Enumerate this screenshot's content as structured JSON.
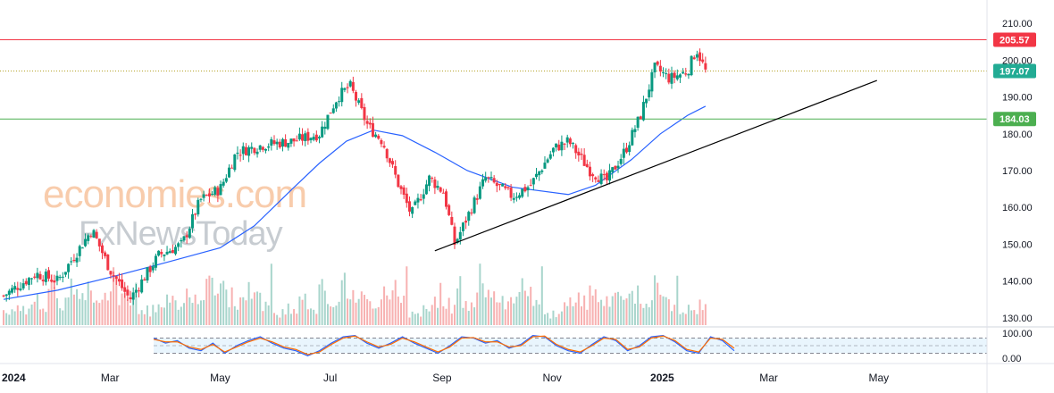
{
  "chart_data": [
    {
      "type": "candlestick",
      "title": "",
      "x_axis": {
        "tick_labels": [
          "2024",
          "Mar",
          "May",
          "Jul",
          "Sep",
          "Nov",
          "2025",
          "Mar",
          "May"
        ],
        "range": [
          "2024-01-01",
          "2025-06-30"
        ]
      },
      "y_axis": {
        "side": "right",
        "tick_labels": [
          "130.00",
          "140.00",
          "150.00",
          "160.00",
          "170.00",
          "180.00",
          "190.00",
          "200.00",
          "210.00"
        ],
        "ylim": [
          128,
          212
        ]
      },
      "grid": false,
      "horizontal_levels": [
        {
          "value": 205.57,
          "label": "205.57",
          "color": "#f23645",
          "style": "solid"
        },
        {
          "value": 197.07,
          "label": "197.07",
          "color": "#b5a42a",
          "style": "dotted",
          "badge_color": "#22ab94"
        },
        {
          "value": 184.03,
          "label": "184.03",
          "color": "#4caf50",
          "style": "solid"
        }
      ],
      "trendline": {
        "color": "#000000",
        "points": [
          [
            "2024-08-28",
            148.2
          ],
          [
            "2025-04-30",
            194.5
          ]
        ]
      },
      "moving_average": {
        "color": "#2962ff",
        "points": [
          [
            "2024-01-02",
            135
          ],
          [
            "2024-02-01",
            137.5
          ],
          [
            "2024-03-01",
            141
          ],
          [
            "2024-04-01",
            145
          ],
          [
            "2024-05-01",
            149
          ],
          [
            "2024-05-20",
            155
          ],
          [
            "2024-06-10",
            165
          ],
          [
            "2024-06-25",
            172
          ],
          [
            "2024-07-10",
            178
          ],
          [
            "2024-07-25",
            181
          ],
          [
            "2024-08-10",
            179.5
          ],
          [
            "2024-08-28",
            175
          ],
          [
            "2024-09-15",
            170
          ],
          [
            "2024-10-10",
            165.5
          ],
          [
            "2024-11-10",
            163.5
          ],
          [
            "2024-11-25",
            166
          ],
          [
            "2024-12-15",
            173
          ],
          [
            "2024-12-31",
            180
          ],
          [
            "2025-01-15",
            185
          ],
          [
            "2025-01-25",
            187.5
          ]
        ]
      },
      "price_path": [
        [
          "2024-01-02",
          136
        ],
        [
          "2024-01-20",
          142
        ],
        [
          "2024-02-01",
          140
        ],
        [
          "2024-02-20",
          154
        ],
        [
          "2024-03-01",
          143
        ],
        [
          "2024-03-12",
          135
        ],
        [
          "2024-03-28",
          147
        ],
        [
          "2024-04-10",
          150
        ],
        [
          "2024-04-20",
          162
        ],
        [
          "2024-05-01",
          165
        ],
        [
          "2024-05-10",
          175
        ],
        [
          "2024-05-25",
          177
        ],
        [
          "2024-06-10",
          178
        ],
        [
          "2024-06-25",
          180
        ],
        [
          "2024-07-05",
          190
        ],
        [
          "2024-07-12",
          193
        ],
        [
          "2024-07-22",
          182
        ],
        [
          "2024-07-30",
          178
        ],
        [
          "2024-08-08",
          166
        ],
        [
          "2024-08-15",
          158
        ],
        [
          "2024-08-25",
          168
        ],
        [
          "2024-09-02",
          164
        ],
        [
          "2024-09-08",
          150
        ],
        [
          "2024-09-25",
          168
        ],
        [
          "2024-10-10",
          163
        ],
        [
          "2024-10-20",
          166
        ],
        [
          "2024-11-02",
          176
        ],
        [
          "2024-11-10",
          178
        ],
        [
          "2024-11-22",
          170
        ],
        [
          "2024-12-01",
          167
        ],
        [
          "2024-12-12",
          176
        ],
        [
          "2024-12-20",
          185
        ],
        [
          "2024-12-28",
          198
        ],
        [
          "2025-01-05",
          195
        ],
        [
          "2025-01-15",
          197
        ],
        [
          "2025-01-20",
          203
        ],
        [
          "2025-01-25",
          197
        ]
      ],
      "volume": {
        "color_up": "#a8d5cc",
        "color_down": "#f7b1b1",
        "relative_height": [
          0.15,
          0.18,
          0.12,
          0.2,
          0.16,
          0.22,
          0.19,
          0.25,
          0.2,
          0.3,
          0.35,
          0.45,
          0.32,
          0.28,
          0.3,
          0.22,
          0.4,
          0.6,
          0.5,
          0.35,
          0.3,
          0.25,
          0.3,
          0.28,
          0.55,
          0.62,
          0.48,
          0.38,
          0.4,
          0.42,
          0.5,
          0.35,
          0.3,
          0.45,
          0.3,
          0.28,
          0.32,
          0.3,
          0.45,
          0.66,
          0.5,
          0.4,
          0.35,
          0.45,
          0.28,
          0.25,
          0.3,
          0.68
        ]
      }
    },
    {
      "type": "line",
      "title": "",
      "y_axis": {
        "tick_labels": [
          "0.00",
          "100.00"
        ],
        "ylim": [
          -10,
          110
        ]
      },
      "band": [
        20,
        80
      ],
      "series": [
        {
          "color": "#2962ff",
          "values": [
            80,
            60,
            70,
            40,
            30,
            60,
            20,
            50,
            70,
            85,
            60,
            40,
            30,
            10,
            30,
            60,
            85,
            90,
            60,
            40,
            60,
            85,
            60,
            40,
            20,
            50,
            85,
            80,
            60,
            70,
            40,
            55,
            90,
            85,
            50,
            30,
            20,
            55,
            85,
            70,
            30,
            50,
            85,
            90,
            65,
            30,
            20,
            85,
            70,
            30
          ]
        },
        {
          "color": "#ff6d00",
          "values": [
            75,
            65,
            65,
            45,
            35,
            55,
            25,
            45,
            65,
            80,
            65,
            45,
            35,
            15,
            25,
            55,
            80,
            88,
            65,
            45,
            55,
            80,
            65,
            45,
            25,
            45,
            80,
            82,
            65,
            65,
            45,
            50,
            85,
            88,
            55,
            35,
            25,
            50,
            80,
            75,
            35,
            45,
            80,
            88,
            70,
            35,
            25,
            80,
            75,
            40
          ]
        }
      ]
    }
  ],
  "watermark": {
    "line1": "economies.com",
    "line2": "FxNewsToday"
  }
}
